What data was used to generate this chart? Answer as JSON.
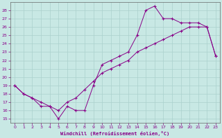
{
  "xlabel": "Windchill (Refroidissement éolien,°C)",
  "xlim": [
    -0.5,
    23.5
  ],
  "ylim": [
    14.5,
    29.0
  ],
  "bg_color": "#c8e8e4",
  "line_color": "#880088",
  "grid_color": "#aad0cc",
  "xticks": [
    0,
    1,
    2,
    3,
    4,
    5,
    6,
    7,
    8,
    9,
    10,
    11,
    12,
    13,
    14,
    15,
    16,
    17,
    18,
    19,
    20,
    21,
    22,
    23
  ],
  "yticks": [
    15,
    16,
    17,
    18,
    19,
    20,
    21,
    22,
    23,
    24,
    25,
    26,
    27,
    28
  ],
  "series1_x": [
    0,
    1,
    2,
    3,
    4,
    5,
    6,
    7,
    8,
    9,
    10,
    11,
    12,
    13,
    14,
    15,
    16,
    17,
    18,
    19,
    20,
    21,
    22,
    23
  ],
  "series1_y": [
    19,
    18,
    17.5,
    16.5,
    16.5,
    15,
    16.5,
    16,
    16,
    19,
    21.5,
    22,
    22.5,
    23,
    25,
    28,
    28.5,
    27,
    27,
    26.5,
    26.5,
    26.5,
    26,
    22.5
  ],
  "series2_x": [
    0,
    1,
    2,
    3,
    4,
    5,
    6,
    7,
    8,
    9,
    10,
    11,
    12,
    13,
    14,
    15,
    16,
    17,
    18,
    19,
    20,
    21,
    22,
    23
  ],
  "series2_y": [
    19,
    18,
    17.5,
    17,
    16.5,
    16,
    17,
    17.5,
    18.5,
    19.5,
    20.5,
    21,
    21.5,
    22,
    23,
    23.5,
    24,
    24.5,
    25,
    25.5,
    26,
    26,
    26,
    22.5
  ]
}
